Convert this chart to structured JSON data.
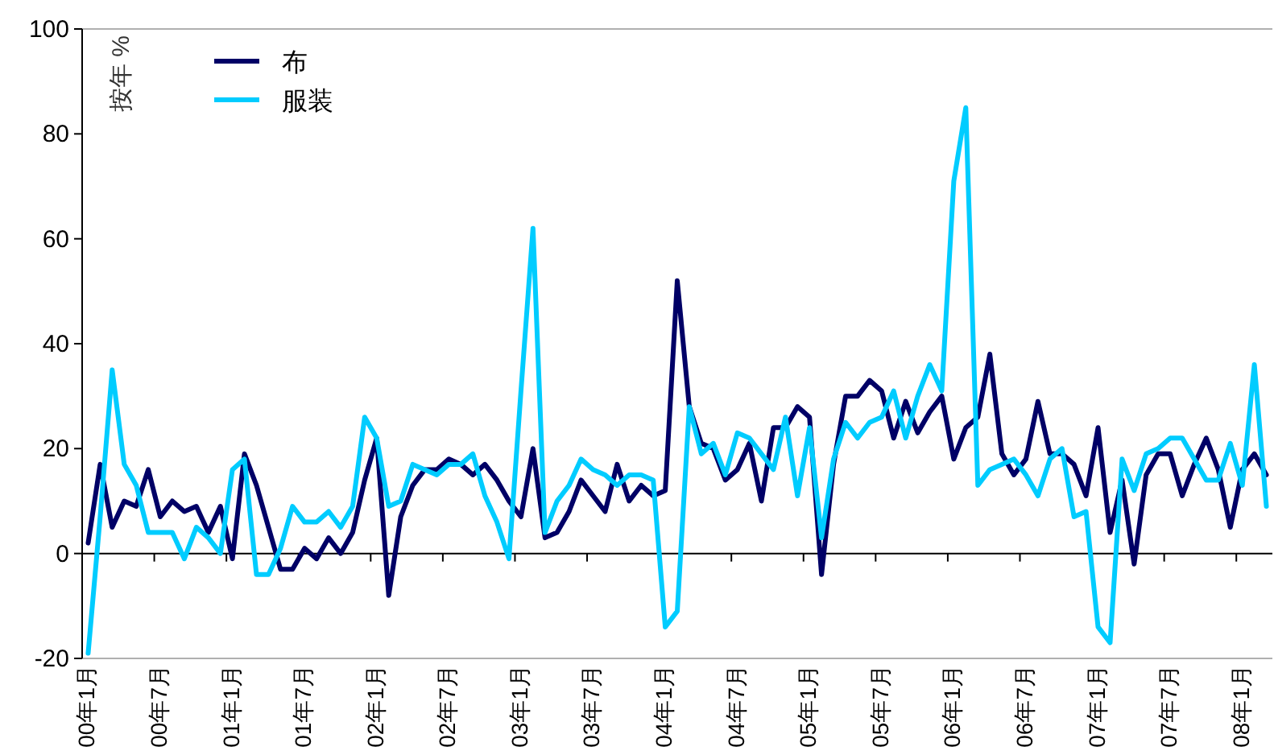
{
  "chart_data": {
    "type": "line",
    "ylabel": "按年 %",
    "categories": [
      "00年1月",
      null,
      null,
      null,
      null,
      null,
      "00年7月",
      null,
      null,
      null,
      null,
      null,
      "01年1月",
      null,
      null,
      null,
      null,
      null,
      "01年7月",
      null,
      null,
      null,
      null,
      null,
      "02年1月",
      null,
      null,
      null,
      null,
      null,
      "02年7月",
      null,
      null,
      null,
      null,
      null,
      "03年1月",
      null,
      null,
      null,
      null,
      null,
      "03年7月",
      null,
      null,
      null,
      null,
      null,
      "04年1月",
      null,
      null,
      null,
      null,
      null,
      "04年7月",
      null,
      null,
      null,
      null,
      null,
      "05年1月",
      null,
      null,
      null,
      null,
      null,
      "05年7月",
      null,
      null,
      null,
      null,
      null,
      "06年1月",
      null,
      null,
      null,
      null,
      null,
      "06年7月",
      null,
      null,
      null,
      null,
      null,
      "07年1月",
      null,
      null,
      null,
      null,
      null,
      "07年7月",
      null,
      null,
      null,
      null,
      null,
      "08年1月",
      null,
      null
    ],
    "series": [
      {
        "name": "布",
        "color": "#000066",
        "values": [
          2,
          17,
          5,
          10,
          9,
          16,
          7,
          10,
          8,
          9,
          4,
          9,
          -1,
          19,
          13,
          5,
          -3,
          -3,
          1,
          -1,
          3,
          0,
          4,
          14,
          22,
          -8,
          7,
          13,
          16,
          16,
          18,
          17,
          15,
          17,
          14,
          10,
          7,
          20,
          3,
          4,
          8,
          14,
          11,
          8,
          17,
          10,
          13,
          11,
          12,
          52,
          28,
          21,
          20,
          14,
          16,
          21,
          10,
          24,
          24,
          28,
          26,
          -4,
          17,
          30,
          30,
          33,
          31,
          22,
          29,
          23,
          27,
          30,
          18,
          24,
          26,
          38,
          19,
          15,
          18,
          29,
          19,
          19,
          17,
          11,
          24,
          4,
          14,
          -2,
          15,
          19,
          19,
          11,
          17,
          22,
          16,
          5,
          16,
          19,
          15
        ]
      },
      {
        "name": "服装",
        "color": "#00ccff",
        "values": [
          -19,
          7,
          35,
          17,
          13,
          4,
          4,
          4,
          -1,
          5,
          3,
          0,
          16,
          18,
          -4,
          -4,
          1,
          9,
          6,
          6,
          8,
          5,
          9,
          26,
          22,
          9,
          10,
          17,
          16,
          15,
          17,
          17,
          19,
          11,
          6,
          -1,
          31,
          62,
          4,
          10,
          13,
          18,
          16,
          15,
          13,
          15,
          15,
          14,
          -14,
          -11,
          28,
          19,
          21,
          15,
          23,
          22,
          19,
          16,
          26,
          11,
          24,
          3,
          18,
          25,
          22,
          25,
          26,
          31,
          22,
          30,
          36,
          31,
          71,
          85,
          13,
          16,
          17,
          18,
          15,
          11,
          18,
          20,
          7,
          8,
          -14,
          -17,
          18,
          12,
          19,
          20,
          22,
          22,
          18,
          14,
          14,
          21,
          13,
          36,
          9
        ]
      }
    ],
    "ylim": [
      -20,
      100
    ],
    "yticks": [
      -20,
      0,
      20,
      40,
      60,
      80,
      100
    ],
    "legend": "top left",
    "marker": "none",
    "line_style": "solid"
  }
}
